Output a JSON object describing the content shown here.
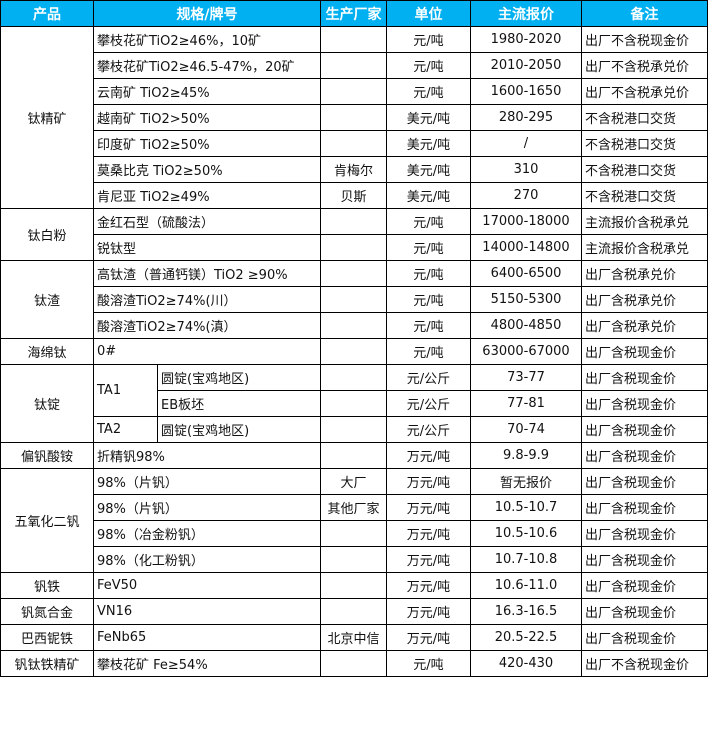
{
  "header": {
    "product": "产品",
    "spec": "规格/牌号",
    "maker": "生产厂家",
    "unit": "单位",
    "price": "主流报价",
    "note": "备注"
  },
  "header_color": "#00B0F0",
  "groups": [
    {
      "product": "钛精矿",
      "rows": [
        {
          "spec": "攀枝花矿TiO2≥46%，10矿",
          "maker": "",
          "unit": "元/吨",
          "price": "1980-2020",
          "note": "出厂不含税现金价"
        },
        {
          "spec": "攀枝花矿TiO2≥46.5-47%，20矿",
          "maker": "",
          "unit": "元/吨",
          "price": "2010-2050",
          "note": "出厂不含税承兑价"
        },
        {
          "spec": "云南矿 TiO2≥45%",
          "maker": "",
          "unit": "元/吨",
          "price": "1600-1650",
          "note": "出厂不含税承兑价"
        },
        {
          "spec": "越南矿 TiO2>50%",
          "maker": "",
          "unit": "美元/吨",
          "price": "280-295",
          "note": "不含税港口交货"
        },
        {
          "spec": "印度矿 TiO2≥50%",
          "maker": "",
          "unit": "美元/吨",
          "price": "/",
          "note": "不含税港口交货"
        },
        {
          "spec": "莫桑比克 TiO2≥50%",
          "maker": "肯梅尔",
          "unit": "美元/吨",
          "price": "310",
          "note": "不含税港口交货"
        },
        {
          "spec": "肯尼亚 TiO2≥49%",
          "maker": "贝斯",
          "unit": "美元/吨",
          "price": "270",
          "note": "不含税港口交货"
        }
      ]
    },
    {
      "product": "钛白粉",
      "rows": [
        {
          "spec": "金红石型（硫酸法）",
          "maker": "",
          "unit": "元/吨",
          "price": "17000-18000",
          "note": "主流报价含税承兑"
        },
        {
          "spec": "锐钛型",
          "maker": "",
          "unit": "元/吨",
          "price": "14000-14800",
          "note": "主流报价含税承兑"
        }
      ]
    },
    {
      "product": "钛渣",
      "rows": [
        {
          "spec": "高钛渣（普通钙镁）TiO2 ≥90%",
          "maker": "",
          "unit": "元/吨",
          "price": "6400-6500",
          "note": "出厂含税承兑价"
        },
        {
          "spec": "酸溶渣TiO2≥74%(川）",
          "maker": "",
          "unit": "元/吨",
          "price": "5150-5300",
          "note": "出厂含税承兑价"
        },
        {
          "spec": "酸溶渣TiO2≥74%(滇）",
          "maker": "",
          "unit": "元/吨",
          "price": "4800-4850",
          "note": "出厂含税承兑价"
        }
      ]
    },
    {
      "product": "海绵钛",
      "rows": [
        {
          "spec": "0#",
          "maker": "",
          "unit": "元/吨",
          "price": "63000-67000",
          "note": "出厂含税现金价"
        }
      ]
    },
    {
      "product": "钛锭",
      "rows": [
        {
          "spec": "TA1",
          "spec_span": 2,
          "sub": "圆锭(宝鸡地区)",
          "maker": "",
          "unit": "元/公斤",
          "price": "73-77",
          "note": "出厂含税现金价"
        },
        {
          "sub": "EB板坯",
          "maker": "",
          "unit": "元/公斤",
          "price": "77-81",
          "note": "出厂含税现金价"
        },
        {
          "spec": "TA2",
          "sub": "圆锭(宝鸡地区)",
          "maker": "",
          "unit": "元/公斤",
          "price": "70-74",
          "note": "出厂含税现金价"
        }
      ]
    },
    {
      "product": "偏钒酸铵",
      "rows": [
        {
          "spec": "折精钒98%",
          "maker": "",
          "unit": "万元/吨",
          "price": "9.8-9.9",
          "note": "出厂含税现金价"
        }
      ]
    },
    {
      "product": "五氧化二钒",
      "rows": [
        {
          "spec": "98%（片钒）",
          "maker": "大厂",
          "unit": "万元/吨",
          "price": "暂无报价",
          "note": "出厂含税现金价"
        },
        {
          "spec": "98%（片钒）",
          "maker": "其他厂家",
          "unit": "万元/吨",
          "price": "10.5-10.7",
          "note": "出厂含税现金价"
        },
        {
          "spec": "98%（冶金粉钒）",
          "maker": "",
          "unit": "万元/吨",
          "price": "10.5-10.6",
          "note": "出厂含税现金价"
        },
        {
          "spec": "98%（化工粉钒）",
          "maker": "",
          "unit": "万元/吨",
          "price": "10.7-10.8",
          "note": "出厂含税现金价"
        }
      ]
    },
    {
      "product": "钒铁",
      "rows": [
        {
          "spec": "FeV50",
          "maker": "",
          "unit": "万元/吨",
          "price": "10.6-11.0",
          "note": "出厂含税现金价"
        }
      ]
    },
    {
      "product": "钒氮合金",
      "rows": [
        {
          "spec": "VN16",
          "maker": "",
          "unit": "万元/吨",
          "price": "16.3-16.5",
          "note": "出厂含税现金价"
        }
      ]
    },
    {
      "product": "巴西铌铁",
      "rows": [
        {
          "spec": "FeNb65",
          "maker": "北京中信",
          "unit": "万元/吨",
          "price": "20.5-22.5",
          "note": "出厂含税现金价"
        }
      ]
    },
    {
      "product": "钒钛铁精矿",
      "rows": [
        {
          "spec": "攀枝花矿 Fe≥54%",
          "maker": "",
          "unit": "元/吨",
          "price": "420-430",
          "note": "出厂不含税现金价"
        }
      ]
    }
  ]
}
